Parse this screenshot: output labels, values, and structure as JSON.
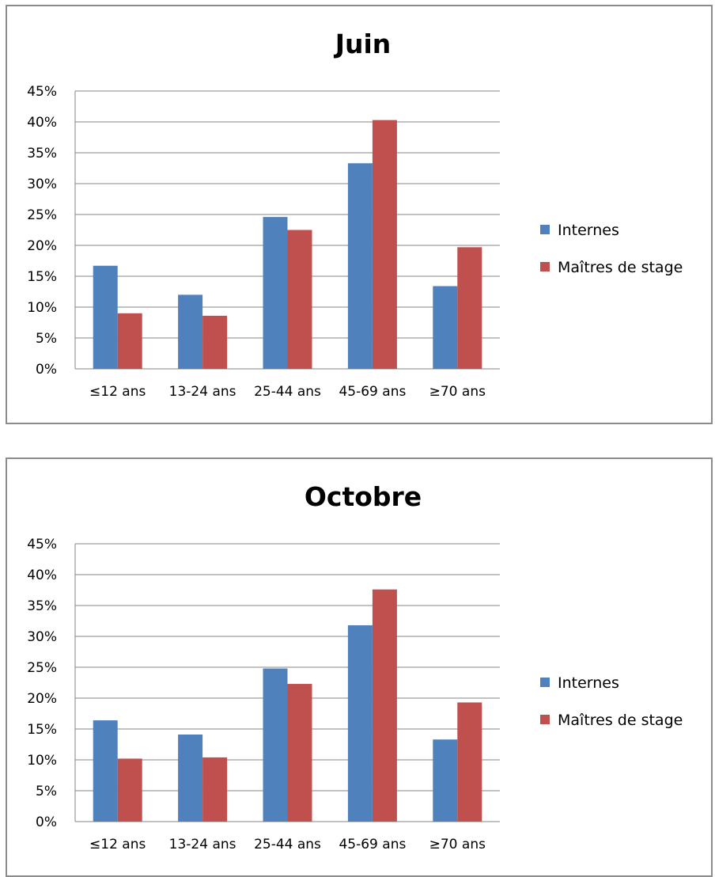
{
  "chart_data": [
    {
      "type": "bar",
      "title": "Juin",
      "xlabel": "",
      "ylabel": "",
      "categories": [
        "≤12 ans",
        "13-24 ans",
        "25-44 ans",
        "45-69 ans",
        "≥70 ans"
      ],
      "series": [
        {
          "name": "Internes",
          "color": "#4f81bd",
          "values": [
            16.7,
            12.0,
            24.6,
            33.3,
            13.4
          ]
        },
        {
          "name": "Maîtres de stage",
          "color": "#c0504d",
          "values": [
            9.0,
            8.6,
            22.5,
            40.3,
            19.7
          ]
        }
      ],
      "ylim": [
        0,
        45
      ],
      "yticks": [
        "0%",
        "5%",
        "10%",
        "15%",
        "20%",
        "25%",
        "30%",
        "35%",
        "40%",
        "45%"
      ],
      "grid": true,
      "legend": "right"
    },
    {
      "type": "bar",
      "title": "Octobre",
      "xlabel": "",
      "ylabel": "",
      "categories": [
        "≤12 ans",
        "13-24 ans",
        "25-44 ans",
        "45-69 ans",
        "≥70 ans"
      ],
      "series": [
        {
          "name": "Internes",
          "color": "#4f81bd",
          "values": [
            16.4,
            14.1,
            24.8,
            31.8,
            13.3
          ]
        },
        {
          "name": "Maîtres de stage",
          "color": "#c0504d",
          "values": [
            10.2,
            10.4,
            22.3,
            37.6,
            19.3
          ]
        }
      ],
      "ylim": [
        0,
        45
      ],
      "yticks": [
        "0%",
        "5%",
        "10%",
        "15%",
        "20%",
        "25%",
        "30%",
        "35%",
        "40%",
        "45%"
      ],
      "grid": true,
      "legend": "right"
    }
  ]
}
